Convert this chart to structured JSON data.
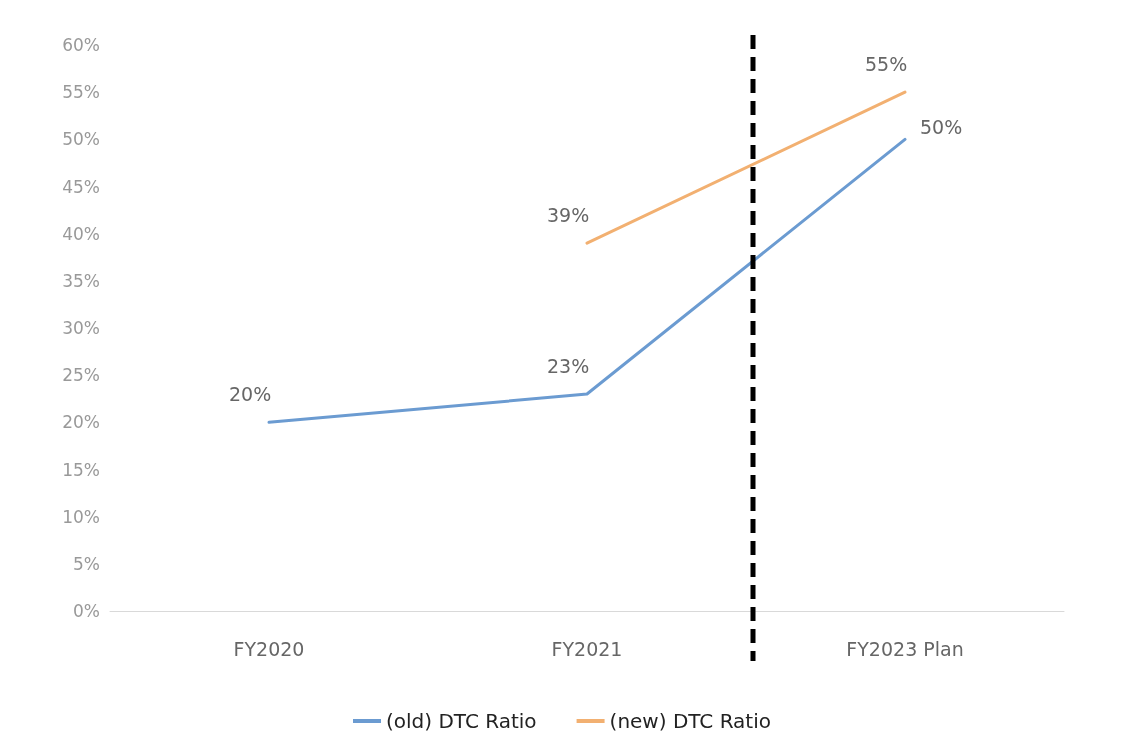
{
  "chart_data": {
    "type": "line",
    "categories": [
      "FY2020",
      "FY2021",
      "FY2023 Plan"
    ],
    "series": [
      {
        "name": "(old) DTC Ratio",
        "color": "#6b9bd1",
        "values": [
          20,
          23,
          50
        ],
        "value_labels": [
          "20%",
          "23%",
          "50%"
        ]
      },
      {
        "name": "(new) DTC Ratio",
        "color": "#f2b071",
        "values": [
          null,
          39,
          55
        ],
        "value_labels": [
          null,
          "39%",
          "55%"
        ]
      }
    ],
    "ylim": [
      0,
      60
    ],
    "yticks": [
      {
        "value": 0,
        "label": "0%"
      },
      {
        "value": 5,
        "label": "5%"
      },
      {
        "value": 10,
        "label": "10%"
      },
      {
        "value": 15,
        "label": "15%"
      },
      {
        "value": 20,
        "label": "20%"
      },
      {
        "value": 25,
        "label": "25%"
      },
      {
        "value": 30,
        "label": "30%"
      },
      {
        "value": 35,
        "label": "35%"
      },
      {
        "value": 40,
        "label": "40%"
      },
      {
        "value": 45,
        "label": "45%"
      },
      {
        "value": 50,
        "label": "50%"
      },
      {
        "value": 55,
        "label": "55%"
      },
      {
        "value": 60,
        "label": "60%"
      }
    ],
    "ref_lines": [
      {
        "axis": "x",
        "color": "#000000",
        "line_style": "dashed"
      }
    ],
    "grid": false,
    "legend": "bottom",
    "marker": "none",
    "line_style": "solid"
  }
}
